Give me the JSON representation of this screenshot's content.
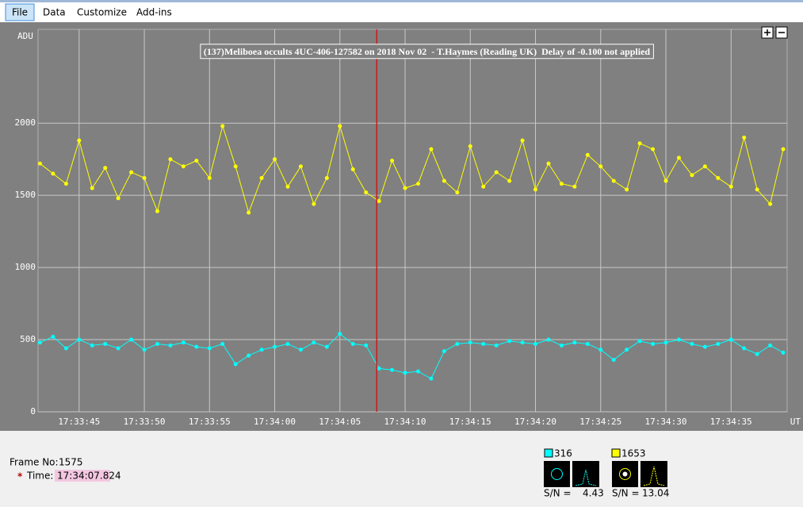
{
  "menu": [
    "File",
    "Data",
    "Customize",
    "Add-ins"
  ],
  "chart_data": {
    "type": "line",
    "title": "(137)Meliboea occults 4UC-406-127582 on 2018 Nov 02  - T.Haymes (Reading UK)  Delay of -0.100 not applied",
    "y_label": "ADU",
    "x_label": "UT",
    "x": [
      "17:33:42",
      "17:33:43",
      "17:33:44",
      "17:33:45",
      "17:33:46",
      "17:33:47",
      "17:33:48",
      "17:33:49",
      "17:33:50",
      "17:33:51",
      "17:33:52",
      "17:33:53",
      "17:33:54",
      "17:33:55",
      "17:33:56",
      "17:33:57",
      "17:33:58",
      "17:33:59",
      "17:34:00",
      "17:34:01",
      "17:34:02",
      "17:34:03",
      "17:34:04",
      "17:34:05",
      "17:34:06",
      "17:34:07",
      "17:34:08",
      "17:34:09",
      "17:34:10",
      "17:34:11",
      "17:34:12",
      "17:34:13",
      "17:34:14",
      "17:34:15",
      "17:34:16",
      "17:34:17",
      "17:34:18",
      "17:34:19",
      "17:34:20",
      "17:34:21",
      "17:34:22",
      "17:34:23",
      "17:34:24",
      "17:34:25",
      "17:34:26",
      "17:34:27",
      "17:34:28",
      "17:34:29",
      "17:34:30",
      "17:34:31",
      "17:34:32",
      "17:34:33",
      "17:34:34",
      "17:34:35",
      "17:34:36",
      "17:34:37",
      "17:34:38",
      "17:34:39"
    ],
    "series": [
      {
        "name": "316",
        "color": "#00ffff",
        "snr": 4.43,
        "values": [
          480,
          520,
          440,
          500,
          460,
          470,
          440,
          500,
          430,
          470,
          460,
          480,
          450,
          440,
          470,
          330,
          390,
          430,
          450,
          470,
          430,
          480,
          450,
          540,
          470,
          460,
          300,
          290,
          270,
          280,
          230,
          420,
          470,
          480,
          470,
          460,
          490,
          480,
          470,
          500,
          460,
          480,
          470,
          430,
          360,
          430,
          490,
          470,
          480,
          500,
          470,
          450,
          470,
          500,
          440,
          400,
          460,
          410
        ]
      },
      {
        "name": "1653",
        "color": "#ffff00",
        "snr": 13.04,
        "values": [
          1720,
          1650,
          1580,
          1880,
          1550,
          1690,
          1480,
          1660,
          1620,
          1390,
          1750,
          1700,
          1740,
          1620,
          1980,
          1700,
          1380,
          1620,
          1750,
          1560,
          1700,
          1440,
          1620,
          1980,
          1680,
          1520,
          1460,
          1740,
          1550,
          1580,
          1820,
          1600,
          1520,
          1840,
          1560,
          1660,
          1600,
          1880,
          1540,
          1720,
          1580,
          1560,
          1780,
          1700,
          1600,
          1540,
          1860,
          1820,
          1600,
          1760,
          1640,
          1700,
          1620,
          1560,
          1900,
          1540,
          1440,
          1820
        ]
      }
    ],
    "ylim": [
      0,
      2650
    ],
    "yticks": [
      0,
      500,
      1000,
      1500,
      2000
    ],
    "xlim": [
      "17:33:41.85",
      "17:34:39.3"
    ],
    "xticks": [
      "17:33:45",
      "17:33:50",
      "17:33:55",
      "17:34:00",
      "17:34:05",
      "17:34:10",
      "17:34:15",
      "17:34:20",
      "17:34:25",
      "17:34:30",
      "17:34:35"
    ],
    "grid": true
  },
  "status": {
    "frame_label": "Frame No:",
    "frame": 1575,
    "star": "*",
    "time_label": "Time:",
    "time": "17:34:07.824",
    "snr_label": "S/N ="
  }
}
